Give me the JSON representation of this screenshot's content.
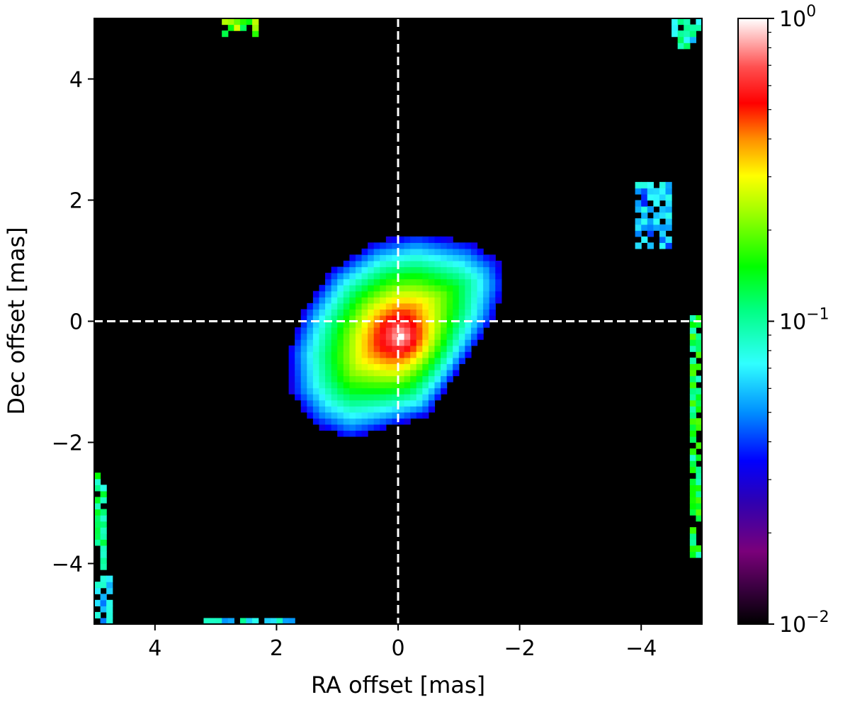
{
  "chart_data": {
    "type": "heatmap",
    "title": "",
    "xlabel": "RA offset [mas]",
    "ylabel": "Dec offset [mas]",
    "xlim": [
      5,
      -5
    ],
    "ylim": [
      -5,
      5
    ],
    "x_reversed": true,
    "x_ticks": [
      4,
      2,
      0,
      -2,
      -4
    ],
    "x_tick_labels": [
      "4",
      "2",
      "0",
      "−2",
      "−4"
    ],
    "y_ticks": [
      4,
      2,
      0,
      -2,
      -4
    ],
    "y_tick_labels": [
      "4",
      "2",
      "0",
      "−2",
      "−4"
    ],
    "grid": false,
    "crosshair": {
      "x": 0,
      "y": 0,
      "style": "dashed",
      "color": "#ffffff"
    },
    "pixel_size_mas": 0.1,
    "colorbar": {
      "scale": "log",
      "range": [
        0.01,
        1
      ],
      "ticks": [
        1,
        0.1,
        0.01
      ],
      "tick_labels": [
        {
          "base": "10",
          "exp": "0"
        },
        {
          "base": "10",
          "exp": "−1"
        },
        {
          "base": "10",
          "exp": "−2"
        }
      ],
      "colormap": [
        [
          0.0,
          "#000000"
        ],
        [
          0.06,
          "#3a0040"
        ],
        [
          0.12,
          "#7a007a"
        ],
        [
          0.2,
          "#3000b0"
        ],
        [
          0.27,
          "#0000ff"
        ],
        [
          0.35,
          "#0090ff"
        ],
        [
          0.43,
          "#30ffff"
        ],
        [
          0.52,
          "#00ff80"
        ],
        [
          0.59,
          "#00ff00"
        ],
        [
          0.68,
          "#a0ff00"
        ],
        [
          0.74,
          "#ffff00"
        ],
        [
          0.8,
          "#ff9000"
        ],
        [
          0.86,
          "#ff0000"
        ],
        [
          0.92,
          "#ff5050"
        ],
        [
          1.0,
          "#ffffff"
        ]
      ]
    },
    "main_component": {
      "peak_value": 1.0,
      "center": [
        -0.05,
        -0.25
      ],
      "shape_vertices": [
        [
          -1.2,
          1.3
        ],
        [
          -1.65,
          1.0
        ],
        [
          -1.75,
          0.6
        ],
        [
          -1.55,
          0.0
        ],
        [
          -0.5,
          -1.55
        ],
        [
          0.0,
          -1.7
        ],
        [
          0.8,
          -1.95
        ],
        [
          1.4,
          -1.7
        ],
        [
          1.75,
          -1.2
        ],
        [
          1.8,
          -0.5
        ],
        [
          1.55,
          0.2
        ],
        [
          1.1,
          0.85
        ],
        [
          0.4,
          1.3
        ],
        [
          -0.3,
          1.45
        ]
      ],
      "edge_value": 0.03
    },
    "faint_features": [
      {
        "x_range": [
          2.9,
          2.3
        ],
        "y_range": [
          4.75,
          4.97
        ],
        "level": 0.2
      },
      {
        "x_range": [
          -4.55,
          -5.0
        ],
        "y_range": [
          4.5,
          4.97
        ],
        "level": 0.09
      },
      {
        "x_range": [
          -3.95,
          -4.55
        ],
        "y_range": [
          1.2,
          2.35
        ],
        "level": 0.06
      },
      {
        "x_range": [
          -4.85,
          -5.0
        ],
        "y_range": [
          -3.9,
          0.1
        ],
        "level": 0.14
      },
      {
        "x_range": [
          5.0,
          4.85
        ],
        "y_range": [
          -4.1,
          -2.5
        ],
        "level": 0.12
      },
      {
        "x_range": [
          5.0,
          4.75
        ],
        "y_range": [
          -4.97,
          -4.2
        ],
        "level": 0.07
      },
      {
        "x_range": [
          3.2,
          1.7
        ],
        "y_range": [
          -4.97,
          -4.9
        ],
        "level": 0.08
      }
    ]
  }
}
